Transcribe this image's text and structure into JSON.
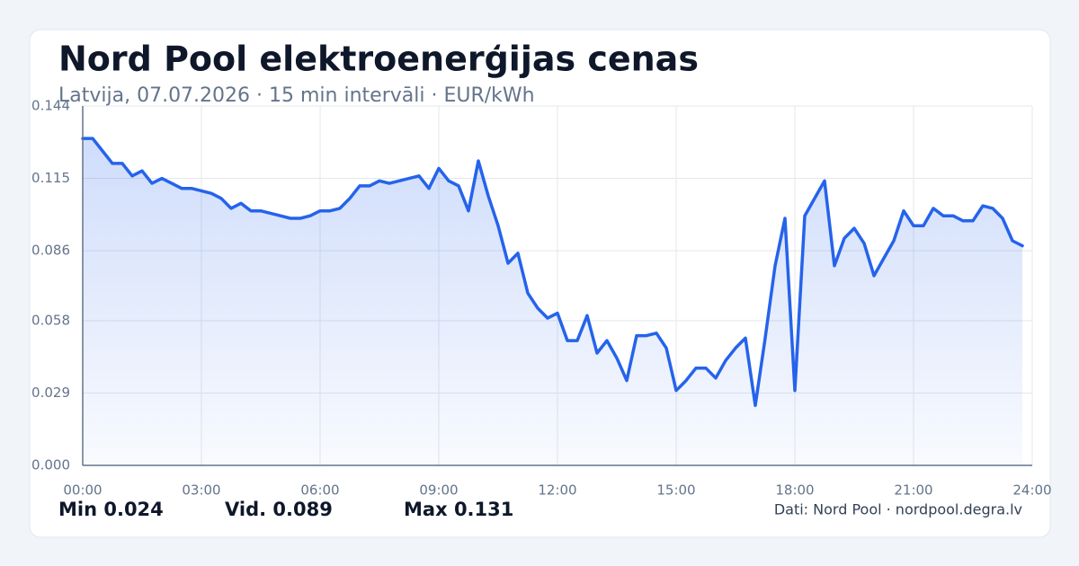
{
  "chart_data": {
    "type": "area",
    "title": "Nord Pool elektroenerģijas cenas",
    "subtitle": "Latvija, 07.07.2026 · 15 min intervāli · EUR/kWh",
    "color": "#2563eb",
    "grid": true,
    "x": [
      0,
      0.25,
      0.5,
      0.75,
      1,
      1.25,
      1.5,
      1.75,
      2,
      2.25,
      2.5,
      2.75,
      3,
      3.25,
      3.5,
      3.75,
      4,
      4.25,
      4.5,
      4.75,
      5,
      5.25,
      5.5,
      5.75,
      6,
      6.25,
      6.5,
      6.75,
      7,
      7.25,
      7.5,
      7.75,
      8,
      8.25,
      8.5,
      8.75,
      9,
      9.25,
      9.5,
      9.75,
      10,
      10.25,
      10.5,
      10.75,
      11,
      11.25,
      11.5,
      11.75,
      12,
      12.25,
      12.5,
      12.75,
      13,
      13.25,
      13.5,
      13.75,
      14,
      14.25,
      14.5,
      14.75,
      15,
      15.25,
      15.5,
      15.75,
      16,
      16.25,
      16.5,
      16.75,
      17,
      17.25,
      17.5,
      17.75,
      18,
      18.25,
      18.5,
      18.75,
      19,
      19.25,
      19.5,
      19.75,
      20,
      20.25,
      20.5,
      20.75,
      21,
      21.25,
      21.5,
      21.75,
      22,
      22.25,
      22.5,
      22.75,
      23,
      23.25,
      23.5,
      23.75
    ],
    "values": [
      0.131,
      0.131,
      0.126,
      0.121,
      0.121,
      0.116,
      0.118,
      0.113,
      0.115,
      0.113,
      0.111,
      0.111,
      0.11,
      0.109,
      0.107,
      0.103,
      0.105,
      0.102,
      0.102,
      0.101,
      0.1,
      0.099,
      0.099,
      0.1,
      0.102,
      0.102,
      0.103,
      0.107,
      0.112,
      0.112,
      0.114,
      0.113,
      0.114,
      0.115,
      0.116,
      0.111,
      0.119,
      0.114,
      0.112,
      0.102,
      0.122,
      0.108,
      0.096,
      0.081,
      0.085,
      0.069,
      0.063,
      0.059,
      0.061,
      0.05,
      0.05,
      0.06,
      0.045,
      0.05,
      0.043,
      0.034,
      0.052,
      0.052,
      0.053,
      0.047,
      0.03,
      0.034,
      0.039,
      0.039,
      0.035,
      0.042,
      0.047,
      0.051,
      0.024,
      0.051,
      0.08,
      0.099,
      0.03,
      0.1,
      0.107,
      0.114,
      0.08,
      0.091,
      0.095,
      0.089,
      0.076,
      0.083,
      0.09,
      0.102,
      0.096,
      0.096,
      0.103,
      0.1,
      0.1,
      0.098,
      0.098,
      0.104,
      0.103,
      0.099,
      0.09,
      0.088
    ],
    "xlim": [
      0,
      24
    ],
    "xticks": [
      {
        "value": 0,
        "label": "00:00"
      },
      {
        "value": 3,
        "label": "03:00"
      },
      {
        "value": 6,
        "label": "06:00"
      },
      {
        "value": 9,
        "label": "09:00"
      },
      {
        "value": 12,
        "label": "12:00"
      },
      {
        "value": 15,
        "label": "15:00"
      },
      {
        "value": 18,
        "label": "18:00"
      },
      {
        "value": 21,
        "label": "21:00"
      },
      {
        "value": 24,
        "label": "24:00"
      }
    ],
    "ylim": [
      0,
      0.144
    ],
    "yticks": [
      {
        "value": 0,
        "label": "0.000"
      },
      0.029,
      0.058,
      0.086,
      0.115,
      0.144
    ],
    "stats": [
      {
        "label": "Min",
        "value": 0.024
      },
      {
        "label": "Vid.",
        "value": 0.089
      },
      {
        "label": "Max",
        "value": 0.131
      }
    ],
    "source": "Dati: Nord Pool · nordpool.degra.lv"
  }
}
